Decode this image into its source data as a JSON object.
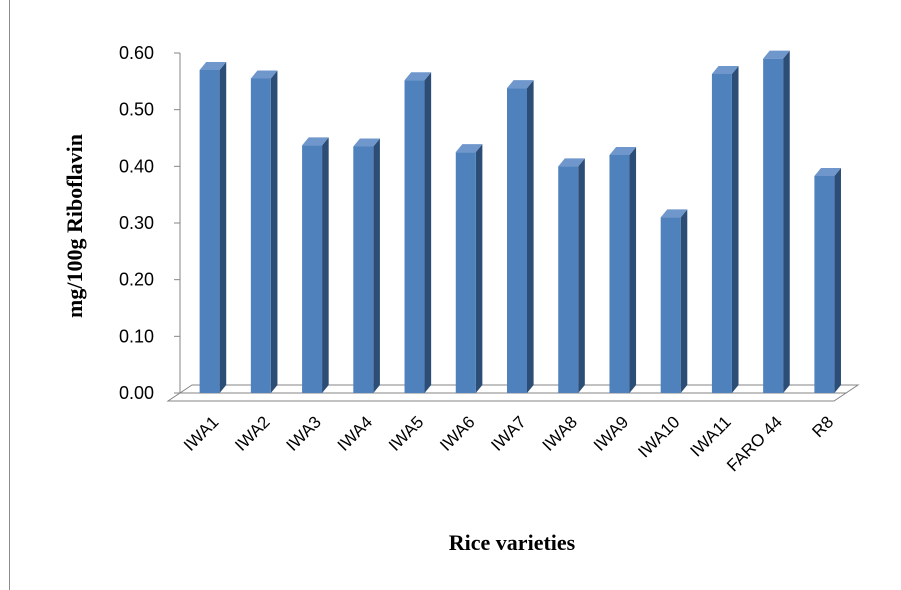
{
  "chart_data": {
    "type": "bar",
    "title": "",
    "xlabel": "Rice varieties",
    "ylabel": "mg/100g Riboflavin",
    "categories": [
      "IWA1",
      "IWA2",
      "IWA3",
      "IWA4",
      "IWA5",
      "IWA6",
      "IWA7",
      "IWA8",
      "IWA9",
      "IWA10",
      "IWA11",
      "FARO 44",
      "R8"
    ],
    "values": [
      0.57,
      0.555,
      0.437,
      0.435,
      0.552,
      0.425,
      0.538,
      0.4,
      0.42,
      0.31,
      0.563,
      0.59,
      0.383
    ],
    "ylim": [
      0,
      0.6
    ],
    "yticks": [
      "0.00",
      "0.10",
      "0.20",
      "0.30",
      "0.40",
      "0.50",
      "0.60"
    ],
    "grid": false,
    "legend": "none",
    "bar_color": "#4F81BD",
    "bar_side_color": "#2C4D75",
    "bar_top_color": "#6F97CC"
  }
}
